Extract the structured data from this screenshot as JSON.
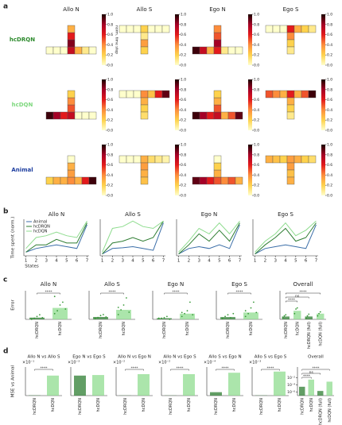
{
  "panel_labels": [
    "a",
    "b",
    "c",
    "d"
  ],
  "colormap": [
    "#ffffcc",
    "#fed24c",
    "#fd8d3c",
    "#e31a1c",
    "#a50026",
    "#1a0000"
  ],
  "colorbar": {
    "zlim": [
      0,
      1
    ],
    "zlabel": "norm. time step",
    "zticks": [
      {
        "value": 0,
        "label": "0.0"
      },
      {
        "value": 0.2,
        "label": "0.2"
      },
      {
        "value": 0.4,
        "label": "0.4"
      },
      {
        "value": 0.6,
        "label": "0.6"
      },
      {
        "value": 0.8,
        "label": "0.8"
      },
      {
        "value": 1,
        "label": "1.0"
      }
    ]
  },
  "chart_data": [
    {
      "type": "heatmap",
      "title": "Allo N",
      "label": "hcDRQN",
      "label_color": "#2e8b2e",
      "stem_direction": "up",
      "row": [
        0,
        0,
        0,
        0.7,
        0.3,
        0.1,
        0
      ],
      "stem": [
        0.85,
        0.6,
        0.3
      ]
    },
    {
      "type": "heatmap",
      "title": "Allo S",
      "stem_direction": "down",
      "row": [
        0,
        0,
        0,
        0.2,
        0,
        0,
        0
      ],
      "stem": [
        0.1,
        0.35,
        0.2
      ]
    },
    {
      "type": "heatmap",
      "title": "Ego N",
      "stem_direction": "up",
      "row": [
        0.95,
        0.7,
        0.3,
        0.6,
        0.1,
        0,
        0
      ],
      "stem": [
        0.8,
        0.5,
        0.4
      ]
    },
    {
      "type": "heatmap",
      "title": "Ego S",
      "stem_direction": "down",
      "row": [
        0,
        0,
        0,
        0.6,
        0.3,
        0.2,
        0.1
      ],
      "stem": [
        0.4,
        0.2,
        0.1
      ]
    },
    {
      "type": "heatmap",
      "label": "hcDQN",
      "label_color": "#7ed87e",
      "stem_direction": "up",
      "row": [
        0.95,
        0.8,
        0.6,
        0.7,
        0,
        0,
        0
      ],
      "stem": [
        0.5,
        0.4,
        0.2
      ]
    },
    {
      "type": "heatmap",
      "stem_direction": "down",
      "row": [
        0,
        0,
        0,
        0.4,
        0.25,
        0.6,
        0.9
      ],
      "stem": [
        0.3,
        0.2,
        0.15
      ]
    },
    {
      "type": "heatmap",
      "stem_direction": "up",
      "row": [
        0.95,
        0.8,
        0.6,
        0.7,
        0.3,
        0.5,
        0.9
      ],
      "stem": [
        0.5,
        0.3,
        0.2
      ]
    },
    {
      "type": "heatmap",
      "stem_direction": "down",
      "row": [
        0.5,
        0.4,
        0.3,
        0.6,
        0.3,
        0.5,
        0.95
      ],
      "stem": [
        0.3,
        0.2,
        0.1
      ]
    },
    {
      "type": "heatmap",
      "label": "Animal",
      "label_color": "#1f3fa0",
      "stem_direction": "up",
      "row": [
        0.2,
        0.3,
        0.3,
        0.4,
        0.3,
        0.6,
        0.95
      ],
      "stem": [
        0.35,
        0.3,
        0
      ]
    },
    {
      "type": "heatmap",
      "stem_direction": "down",
      "row": [
        0,
        0,
        0,
        0.3,
        0.15,
        0.1,
        0.05
      ],
      "stem": [
        0.35,
        0.3,
        0.25
      ]
    },
    {
      "type": "heatmap",
      "stem_direction": "up",
      "row": [
        0.9,
        0.8,
        0.6,
        0.5,
        0.4,
        0.5,
        0.3
      ],
      "stem": [
        0.3,
        0.2,
        0
      ]
    },
    {
      "type": "heatmap",
      "stem_direction": "down",
      "row": [
        0.3,
        0.25,
        0.2,
        0.35,
        0.3,
        0.2,
        0.15
      ],
      "stem": [
        0.35,
        0.25,
        0.3
      ]
    },
    {
      "type": "line",
      "title": "Allo N",
      "xlabel": "States",
      "ylabel": "Time spent (norm.)",
      "legend": true,
      "x": [
        1,
        2,
        3,
        4,
        5,
        6,
        7
      ],
      "xlim": [
        0.8,
        7.2
      ],
      "xticks": [
        1,
        2,
        3,
        4,
        5,
        6,
        7
      ],
      "ylim": [
        0,
        1
      ],
      "series": [
        {
          "name": "Animal",
          "color": "#3b6ea8",
          "values": [
            0.1,
            0.2,
            0.25,
            0.3,
            0.25,
            0.2,
            0.85
          ]
        },
        {
          "name": "hcDRQN",
          "color": "#2e7d32",
          "values": [
            0.1,
            0.3,
            0.3,
            0.45,
            0.35,
            0.35,
            0.9
          ]
        },
        {
          "name": "hcDQN",
          "color": "#8fdc8f",
          "values": [
            0.2,
            0.5,
            0.55,
            0.65,
            0.55,
            0.5,
            0.95
          ]
        }
      ]
    },
    {
      "type": "line",
      "title": "Allo S",
      "x": [
        1,
        2,
        3,
        4,
        5,
        6,
        7
      ],
      "xlim": [
        0.8,
        7.2
      ],
      "xticks": [
        1,
        2,
        3,
        4,
        5,
        6,
        7
      ],
      "ylim": [
        0,
        1
      ],
      "series": [
        {
          "name": "Animal",
          "color": "#3b6ea8",
          "values": [
            0.05,
            0.2,
            0.22,
            0.25,
            0.2,
            0.15,
            0.9
          ]
        },
        {
          "name": "hcDRQN",
          "color": "#2e7d32",
          "values": [
            0.05,
            0.35,
            0.4,
            0.5,
            0.4,
            0.5,
            0.95
          ]
        },
        {
          "name": "hcDQN",
          "color": "#8fdc8f",
          "values": [
            0.1,
            0.75,
            0.8,
            0.95,
            0.8,
            0.75,
            0.95
          ]
        }
      ]
    },
    {
      "type": "line",
      "title": "Ego N",
      "x": [
        1,
        2,
        3,
        4,
        5,
        6,
        7
      ],
      "xlim": [
        0.8,
        7.2
      ],
      "xticks": [
        1,
        2,
        3,
        4,
        5,
        6,
        7
      ],
      "ylim": [
        0,
        1
      ],
      "series": [
        {
          "name": "Animal",
          "color": "#3b6ea8",
          "values": [
            0.05,
            0.2,
            0.25,
            0.2,
            0.3,
            0.2,
            0.85
          ]
        },
        {
          "name": "hcDRQN",
          "color": "#2e7d32",
          "values": [
            0.05,
            0.3,
            0.6,
            0.4,
            0.7,
            0.4,
            0.9
          ]
        },
        {
          "name": "hcDQN",
          "color": "#8fdc8f",
          "values": [
            0.1,
            0.4,
            0.75,
            0.6,
            0.9,
            0.6,
            0.95
          ]
        }
      ]
    },
    {
      "type": "line",
      "title": "Ego S",
      "x": [
        1,
        2,
        3,
        4,
        5,
        6,
        7
      ],
      "xlim": [
        0.8,
        7.2
      ],
      "xticks": [
        1,
        2,
        3,
        4,
        5,
        6,
        7
      ],
      "ylim": [
        0,
        1
      ],
      "series": [
        {
          "name": "Animal",
          "color": "#3b6ea8",
          "values": [
            0.05,
            0.2,
            0.25,
            0.3,
            0.25,
            0.2,
            0.85
          ]
        },
        {
          "name": "hcDRQN",
          "color": "#2e7d32",
          "values": [
            0.05,
            0.3,
            0.5,
            0.75,
            0.4,
            0.5,
            0.9
          ]
        },
        {
          "name": "hcDQN",
          "color": "#8fdc8f",
          "values": [
            0.1,
            0.4,
            0.6,
            0.9,
            0.55,
            0.7,
            0.95
          ]
        }
      ]
    },
    {
      "type": "bar",
      "title": "Allo N",
      "ylabel": "Error",
      "categories": [
        "hcDRQN",
        "hcDQN"
      ],
      "colors": [
        "#2e7d32",
        "#8fdc8f"
      ],
      "ylim": [
        0,
        0.5
      ],
      "values": [
        0.03,
        0.2
      ],
      "points": [
        [
          0.01,
          0.02,
          0.05,
          0.08,
          0.03,
          0.0
        ],
        [
          0.1,
          0.15,
          0.25,
          0.3,
          0.18,
          0.4
        ]
      ],
      "annotations": [
        {
          "text": "****",
          "pair": [
            0,
            1
          ]
        }
      ]
    },
    {
      "type": "bar",
      "title": "Allo S",
      "categories": [
        "hcDRQN",
        "hcDQN"
      ],
      "colors": [
        "#2e7d32",
        "#8fdc8f"
      ],
      "ylim": [
        0,
        0.6
      ],
      "values": [
        0.05,
        0.2
      ],
      "points": [
        [
          0.02,
          0.04,
          0.08,
          0.1,
          0.05,
          0.01
        ],
        [
          0.1,
          0.2,
          0.3,
          0.45,
          0.15,
          0.25
        ]
      ],
      "annotations": [
        {
          "text": "****",
          "pair": [
            0,
            1
          ]
        }
      ]
    },
    {
      "type": "bar",
      "title": "Ego N",
      "categories": [
        "hcDRQN",
        "hcDQN"
      ],
      "colors": [
        "#2e7d32",
        "#8fdc8f"
      ],
      "ylim": [
        0,
        0.5
      ],
      "values": [
        0.02,
        0.1
      ],
      "points": [
        [
          0.01,
          0.02,
          0.03,
          0.05,
          0.0,
          0.02
        ],
        [
          0.05,
          0.1,
          0.15,
          0.3,
          0.08,
          0.12
        ]
      ],
      "annotations": [
        {
          "text": "****",
          "pair": [
            0,
            1
          ]
        }
      ]
    },
    {
      "type": "bar",
      "title": "Ego S",
      "categories": [
        "hcDRQN",
        "hcDQN"
      ],
      "colors": [
        "#2e7d32",
        "#8fdc8f"
      ],
      "ylim": [
        0,
        0.5
      ],
      "values": [
        0.04,
        0.12
      ],
      "points": [
        [
          0.02,
          0.05,
          0.08,
          0.03,
          0.1,
          0.01
        ],
        [
          0.05,
          0.1,
          0.2,
          0.3,
          0.12,
          0.15
        ]
      ],
      "annotations": [
        {
          "text": "****",
          "pair": [
            0,
            1
          ]
        }
      ]
    },
    {
      "type": "bar",
      "title": "Overall",
      "categories": [
        "hcDRQN",
        "hcDQN",
        "hcDRQN (full)",
        "hcDQN (full)"
      ],
      "colors": [
        "#2e7d32",
        "#8fdc8f",
        "#2e7d32",
        "#8fdc8f"
      ],
      "ylim": [
        0,
        0.5
      ],
      "values": [
        0.05,
        0.15,
        0.05,
        0.1
      ],
      "points": [
        [
          0.03,
          0.06,
          0.08
        ],
        [
          0.1,
          0.18,
          0.2
        ],
        [
          0.02,
          0.06,
          0.09
        ],
        [
          0.06,
          0.1,
          0.13
        ]
      ],
      "annotations": [
        {
          "text": "****",
          "pair": [
            0,
            3
          ]
        },
        {
          "text": "ns",
          "pair": [
            0,
            2
          ]
        },
        {
          "text": "****",
          "pair": [
            0,
            1
          ]
        }
      ]
    },
    {
      "type": "bar",
      "title": "Allo N vs Allo S",
      "ylabel": "MSE vs Animal",
      "offset_label": "×10⁻¹",
      "categories": [
        "hcDRQN",
        "hcDQN"
      ],
      "colors": [
        "#2e7d32",
        "#8fdc8f"
      ],
      "ylim": [
        0,
        1
      ],
      "values": [
        0.01,
        0.7
      ],
      "annotations": [
        {
          "text": "****",
          "pair": [
            0,
            1
          ]
        }
      ]
    },
    {
      "type": "bar",
      "title": "Ego N vs Ego S",
      "offset_label": "×10⁻³",
      "categories": [
        "hcDRQN",
        "hcDQN"
      ],
      "colors": [
        "#2e7d32",
        "#8fdc8f"
      ],
      "ylim": [
        0,
        5
      ],
      "values": [
        3.5,
        3.6
      ]
    },
    {
      "type": "bar",
      "title": "Allo N vs Ego N",
      "offset_label": "×10⁻²",
      "categories": [
        "hcDRQN",
        "hcDQN"
      ],
      "colors": [
        "#2e7d32",
        "#8fdc8f"
      ],
      "ylim": [
        0,
        8
      ],
      "values": [
        0.05,
        6
      ],
      "annotations": [
        {
          "text": "****",
          "pair": [
            0,
            1
          ]
        }
      ]
    },
    {
      "type": "bar",
      "title": "Allo N vs Ego S",
      "offset_label": "×10⁻²",
      "categories": [
        "hcDRQN",
        "hcDQN"
      ],
      "colors": [
        "#2e7d32",
        "#8fdc8f"
      ],
      "ylim": [
        0,
        8
      ],
      "values": [
        0.05,
        6
      ],
      "annotations": [
        {
          "text": "****",
          "pair": [
            0,
            1
          ]
        }
      ]
    },
    {
      "type": "bar",
      "title": "Allo S vs Ego N",
      "offset_label": "×10⁻⁴",
      "categories": [
        "hcDRQN",
        "hcDQN"
      ],
      "colors": [
        "#2e7d32",
        "#8fdc8f"
      ],
      "ylim": [
        0,
        2.5
      ],
      "values": [
        0.3,
        2
      ],
      "annotations": [
        {
          "text": "****",
          "pair": [
            0,
            1
          ]
        }
      ]
    },
    {
      "type": "bar",
      "title": "Allo S vs Ego S",
      "offset_label": "×10⁻³",
      "categories": [
        "hcDRQN",
        "hcDQN"
      ],
      "colors": [
        "#2e7d32",
        "#8fdc8f"
      ],
      "ylim": [
        0,
        2.5
      ],
      "values": [
        0.02,
        2.1
      ],
      "annotations": [
        {
          "text": "****",
          "pair": [
            0,
            1
          ]
        }
      ]
    },
    {
      "type": "bar",
      "title": "Overall",
      "log": true,
      "categories": [
        "hcDRQN",
        "hcDQN",
        "hcDRQN (full)",
        "hcDQN (full)"
      ],
      "colors": [
        "#2e7d32",
        "#8fdc8f",
        "#2e7d32",
        "#8fdc8f"
      ],
      "ylim": [
        1e-07,
        10
      ],
      "yticks": [
        {
          "value": 0.01,
          "label": "10⁻²"
        },
        {
          "value": 0.0001,
          "label": "10⁻⁴"
        },
        {
          "value": 1e-06,
          "label": "10⁻⁶"
        }
      ],
      "values": [
        3e-05,
        0.003,
        2e-06,
        0.0008
      ],
      "annotations": [
        {
          "text": "****",
          "pair": [
            0,
            3
          ]
        },
        {
          "text": "ns",
          "pair": [
            0,
            2
          ]
        },
        {
          "text": "****",
          "pair": [
            0,
            1
          ]
        }
      ]
    }
  ]
}
